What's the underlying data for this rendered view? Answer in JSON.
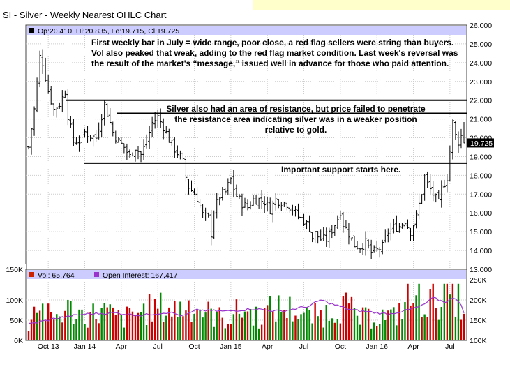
{
  "header": {
    "title": "SI - Silver - Weekly Nearest OHLC Chart",
    "ohlc_readout": "Op:20.410, Hi:20.835, Lo:19.715, Cl:19.725",
    "last_price": "19.725"
  },
  "annotations": {
    "note1_line1": "First weekly bar in July = wide range, poor close, a red flag sellers were string than buyers.",
    "note1_line2": "Vol also peaked that weak, adding to the red flag market condition.  Last week's reversal was",
    "note1_line3": "the result of the market's “message,” issued well in advance for those who paid attention.",
    "note2_line1": "Silver also had an area of resistance, but price failed to penetrate",
    "note2_line2": "the resistance area  indicating silver was in a weaker position",
    "note2_line3": "relative to gold.",
    "note3": "Important support starts here."
  },
  "volume_panel": {
    "vol_label": "Vol: 65,764",
    "oi_label": "Open Interest: 167,417",
    "vol_color": "#cc2200",
    "oi_color": "#9933cc",
    "up_color": "#008800",
    "down_color": "#cc0000"
  },
  "colors": {
    "accent": "#ccccff",
    "grid": "#bbbbbb",
    "price_bar": "#000000",
    "note_bg": "#ffffcc"
  },
  "chart_data": {
    "type": "ohlc",
    "y_ticks": [
      "26.000",
      "25.000",
      "24.000",
      "23.000",
      "22.000",
      "21.000",
      "20.000",
      "19.000",
      "18.000",
      "17.000",
      "16.000",
      "15.000",
      "14.000",
      "13.000"
    ],
    "y_range": [
      13,
      26
    ],
    "vol_left_ticks": [
      "150K",
      "100K",
      "50K",
      "0K"
    ],
    "vol_right_ticks": [
      "250K",
      "200K",
      "150K",
      "100K"
    ],
    "vol_range": [
      0,
      150000
    ],
    "oi_range": [
      100000,
      250000
    ],
    "x_labels": [
      {
        "label": "Oct 13",
        "i": 7
      },
      {
        "label": "Jan 14",
        "i": 20
      },
      {
        "label": "Apr",
        "i": 33
      },
      {
        "label": "Jul",
        "i": 46
      },
      {
        "label": "Oct",
        "i": 59
      },
      {
        "label": "Jan 15",
        "i": 72
      },
      {
        "label": "Apr",
        "i": 85
      },
      {
        "label": "Jul",
        "i": 98
      },
      {
        "label": "Oct",
        "i": 111
      },
      {
        "label": "Jan 16",
        "i": 124
      },
      {
        "label": "Apr",
        "i": 137
      },
      {
        "label": "Jul",
        "i": 150
      }
    ],
    "bar_count": 156,
    "price_anchors": [
      [
        0,
        19.5
      ],
      [
        2,
        21.5
      ],
      [
        4,
        24.3
      ],
      [
        5,
        24.0
      ],
      [
        7,
        22.5
      ],
      [
        9,
        21.5
      ],
      [
        11,
        21.8
      ],
      [
        13,
        22.5
      ],
      [
        14,
        21.2
      ],
      [
        16,
        19.8
      ],
      [
        18,
        19.8
      ],
      [
        20,
        20.3
      ],
      [
        22,
        20.1
      ],
      [
        24,
        20.0
      ],
      [
        26,
        21.2
      ],
      [
        27,
        21.8
      ],
      [
        28,
        21.3
      ],
      [
        30,
        20.3
      ],
      [
        32,
        19.8
      ],
      [
        34,
        19.5
      ],
      [
        36,
        19.0
      ],
      [
        38,
        19.5
      ],
      [
        40,
        19.1
      ],
      [
        42,
        19.8
      ],
      [
        44,
        20.8
      ],
      [
        46,
        21.1
      ],
      [
        48,
        20.6
      ],
      [
        50,
        19.9
      ],
      [
        52,
        19.4
      ],
      [
        54,
        19.0
      ],
      [
        55,
        18.7
      ],
      [
        56,
        17.9
      ],
      [
        57,
        17.4
      ],
      [
        58,
        17.2
      ],
      [
        60,
        16.8
      ],
      [
        62,
        15.9
      ],
      [
        64,
        15.7
      ],
      [
        65,
        14.9
      ],
      [
        66,
        16.1
      ],
      [
        68,
        16.9
      ],
      [
        70,
        17.1
      ],
      [
        72,
        17.8
      ],
      [
        73,
        17.3
      ],
      [
        74,
        16.9
      ],
      [
        76,
        16.5
      ],
      [
        78,
        16.3
      ],
      [
        80,
        16.7
      ],
      [
        82,
        16.7
      ],
      [
        84,
        16.6
      ],
      [
        86,
        16.2
      ],
      [
        88,
        16.7
      ],
      [
        90,
        16.6
      ],
      [
        92,
        16.5
      ],
      [
        94,
        16.2
      ],
      [
        96,
        15.8
      ],
      [
        98,
        15.6
      ],
      [
        100,
        15.2
      ],
      [
        101,
        14.7
      ],
      [
        102,
        14.9
      ],
      [
        104,
        14.6
      ],
      [
        106,
        14.6
      ],
      [
        108,
        15.1
      ],
      [
        110,
        15.7
      ],
      [
        111,
        16.1
      ],
      [
        112,
        15.4
      ],
      [
        114,
        14.9
      ],
      [
        116,
        14.3
      ],
      [
        118,
        14.2
      ],
      [
        120,
        14.4
      ],
      [
        122,
        13.9
      ],
      [
        124,
        14.0
      ],
      [
        126,
        14.2
      ],
      [
        128,
        15.0
      ],
      [
        130,
        15.2
      ],
      [
        132,
        15.3
      ],
      [
        134,
        15.6
      ],
      [
        136,
        15.0
      ],
      [
        138,
        15.8
      ],
      [
        140,
        17.1
      ],
      [
        141,
        17.9
      ],
      [
        142,
        17.5
      ],
      [
        144,
        17.0
      ],
      [
        146,
        16.5
      ],
      [
        147,
        17.3
      ],
      [
        149,
        17.9
      ],
      [
        150,
        19.3
      ],
      [
        151,
        20.8
      ],
      [
        152,
        20.1
      ],
      [
        153,
        19.8
      ],
      [
        154,
        20.1
      ],
      [
        155,
        19.725
      ]
    ],
    "volume_k_anchors": [
      [
        0,
        40
      ],
      [
        3,
        100
      ],
      [
        8,
        55
      ],
      [
        14,
        80
      ],
      [
        20,
        65
      ],
      [
        27,
        75
      ],
      [
        33,
        55
      ],
      [
        40,
        75
      ],
      [
        46,
        85
      ],
      [
        52,
        80
      ],
      [
        58,
        95
      ],
      [
        64,
        70
      ],
      [
        70,
        55
      ],
      [
        76,
        80
      ],
      [
        82,
        62
      ],
      [
        88,
        85
      ],
      [
        94,
        80
      ],
      [
        100,
        60
      ],
      [
        106,
        72
      ],
      [
        112,
        95
      ],
      [
        118,
        55
      ],
      [
        124,
        65
      ],
      [
        130,
        60
      ],
      [
        135,
        105
      ],
      [
        140,
        110
      ],
      [
        143,
        100
      ],
      [
        148,
        118
      ],
      [
        152,
        125
      ],
      [
        155,
        66
      ]
    ],
    "open_interest_k_anchors": [
      [
        0,
        140
      ],
      [
        10,
        155
      ],
      [
        20,
        165
      ],
      [
        30,
        168
      ],
      [
        40,
        162
      ],
      [
        50,
        170
      ],
      [
        55,
        160
      ],
      [
        60,
        175
      ],
      [
        70,
        172
      ],
      [
        80,
        178
      ],
      [
        90,
        172
      ],
      [
        100,
        185
      ],
      [
        104,
        200
      ],
      [
        108,
        190
      ],
      [
        115,
        175
      ],
      [
        122,
        170
      ],
      [
        128,
        165
      ],
      [
        135,
        175
      ],
      [
        140,
        185
      ],
      [
        144,
        205
      ],
      [
        148,
        195
      ],
      [
        152,
        205
      ],
      [
        154,
        190
      ],
      [
        155,
        167
      ]
    ],
    "resistance_upper": 22.0,
    "resistance_lower": 21.3,
    "support": 18.65
  }
}
